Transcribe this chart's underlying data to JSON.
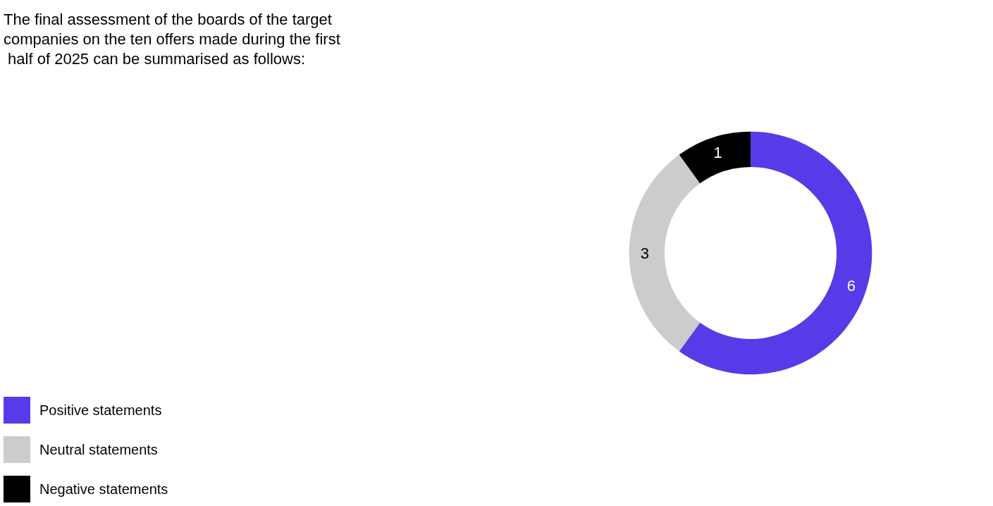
{
  "chart_data": {
    "type": "donut",
    "title": "The final assessment of the boards of the target companies on the ten offers made during the first half of 2025 can be summarised as follows:",
    "categories": [
      "Positive statements",
      "Neutral statements",
      "Negative statements"
    ],
    "values": [
      6,
      3,
      1
    ],
    "colors": [
      "#583be8",
      "#cccccc",
      "#000000"
    ],
    "data_labels": true,
    "legend": "bottom left"
  }
}
